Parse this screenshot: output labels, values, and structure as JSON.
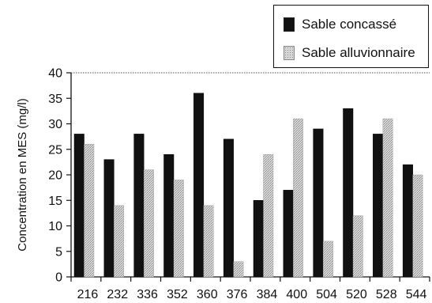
{
  "chart_data": {
    "type": "bar",
    "categories": [
      "216",
      "232",
      "336",
      "352",
      "360",
      "376",
      "384",
      "400",
      "504",
      "520",
      "528",
      "544"
    ],
    "series": [
      {
        "name": "Sable concassé",
        "values": [
          28,
          23,
          28,
          24,
          36,
          27,
          15,
          17,
          29,
          33,
          28,
          22
        ],
        "color": "#111111"
      },
      {
        "name": "Sable alluvionnaire",
        "values": [
          26,
          14,
          21,
          19,
          14,
          3,
          24,
          31,
          7,
          12,
          31,
          20
        ],
        "color": "#c8c8c8"
      }
    ],
    "title": "",
    "xlabel": "",
    "ylabel": "Concentration en MES (mg/l)",
    "ylim": [
      0,
      40
    ],
    "yticks": [
      "0",
      "5",
      "10",
      "15",
      "20",
      "25",
      "30",
      "35",
      "40"
    ],
    "grid": false,
    "legend_position": "top-right"
  }
}
